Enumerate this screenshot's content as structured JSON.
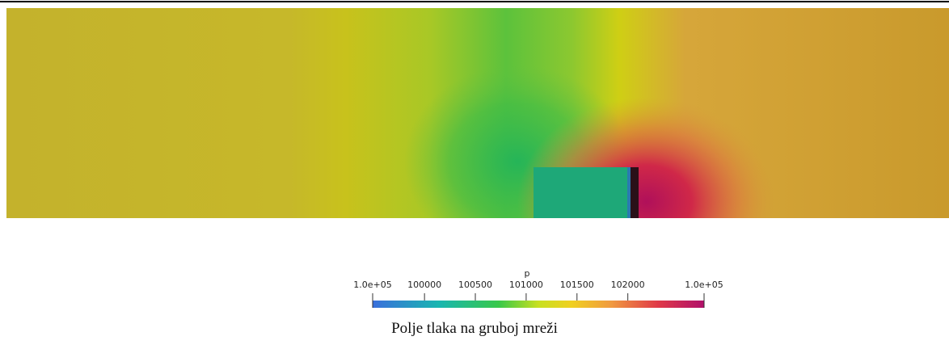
{
  "colorbar": {
    "title": "p",
    "range": [
      {
        "value": 99490,
        "label": "1.0e+05"
      },
      {
        "value": 102750,
        "label": "1.0e+05"
      }
    ],
    "ticks": [
      100000,
      100500,
      101000,
      101500,
      102000
    ]
  },
  "caption": "Polje tlaka na gruboj mreži"
}
